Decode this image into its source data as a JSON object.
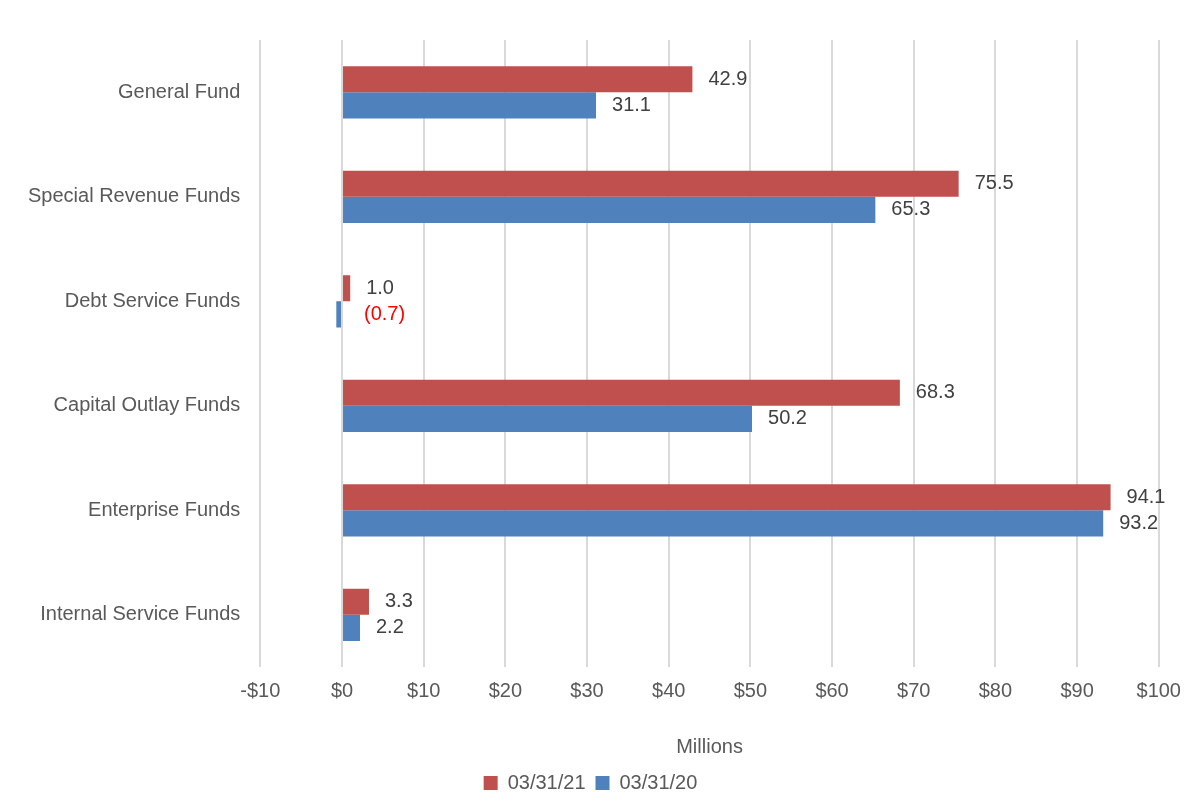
{
  "chart_data": {
    "type": "bar",
    "orientation": "horizontal",
    "xlabel": "Millions",
    "categories": [
      "General Fund",
      "Special Revenue Funds",
      "Debt Service Funds",
      "Capital Outlay Funds",
      "Enterprise Funds",
      "Internal Service Funds"
    ],
    "series": [
      {
        "name": "03/31/21",
        "color": "#c0504d",
        "values": [
          42.9,
          75.5,
          1.0,
          68.3,
          94.1,
          3.3
        ],
        "value_labels": [
          "42.9",
          "75.5",
          "1.0",
          "68.3",
          "94.1",
          "3.3"
        ]
      },
      {
        "name": "03/31/20",
        "color": "#4f81bd",
        "values": [
          31.1,
          65.3,
          -0.7,
          50.2,
          93.2,
          2.2
        ],
        "value_labels": [
          "31.1",
          "65.3",
          "(0.7)",
          "50.2",
          "93.2",
          "2.2"
        ]
      }
    ],
    "xlim": [
      -10,
      100
    ],
    "xticks": [
      {
        "value": -10,
        "label": "-$10"
      },
      {
        "value": 0,
        "label": "$0"
      },
      {
        "value": 10,
        "label": "$10"
      },
      {
        "value": 20,
        "label": "$20"
      },
      {
        "value": 30,
        "label": "$30"
      },
      {
        "value": 40,
        "label": "$40"
      },
      {
        "value": 50,
        "label": "$50"
      },
      {
        "value": 60,
        "label": "$60"
      },
      {
        "value": 70,
        "label": "$70"
      },
      {
        "value": 80,
        "label": "$80"
      },
      {
        "value": 90,
        "label": "$90"
      },
      {
        "value": 100,
        "label": "$100"
      }
    ],
    "grid": "x",
    "legend": "bottom"
  }
}
